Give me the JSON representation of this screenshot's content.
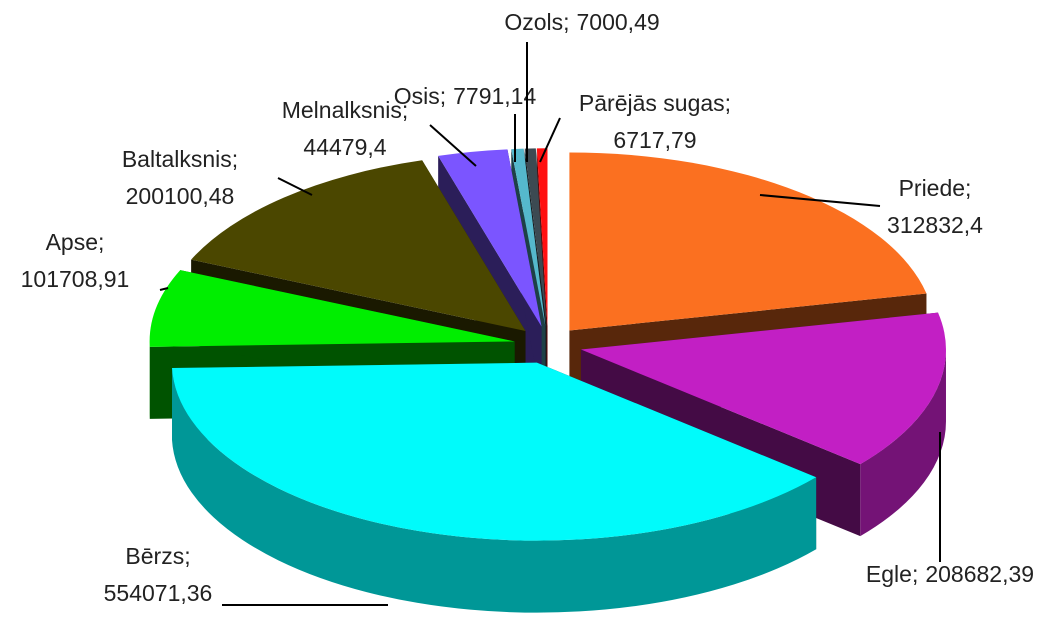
{
  "chart_data": {
    "type": "pie",
    "categories": [
      "Priede",
      "Egle",
      "Bērzs",
      "Apse",
      "Baltalksnis",
      "Melnalksnis",
      "Osis",
      "Ozols",
      "Pārējās sugas"
    ],
    "values": [
      312832.4,
      208682.39,
      554071.36,
      101708.91,
      200100.48,
      44479.4,
      7791.14,
      7000.49,
      6717.79
    ],
    "value_labels": [
      "312832,4",
      "208682,39",
      "554071,36",
      "101708,91",
      "200100,48",
      "44479,4",
      "7791,14",
      "7000,49",
      "6717,79"
    ],
    "label_separator": ";",
    "colors": [
      "#fb7020",
      "#c21fc4",
      "#00fbfb",
      "#00ee00",
      "#4b4700",
      "#7b55ff",
      "#55b8cc",
      "#3c4a52",
      "#ff1010"
    ]
  }
}
